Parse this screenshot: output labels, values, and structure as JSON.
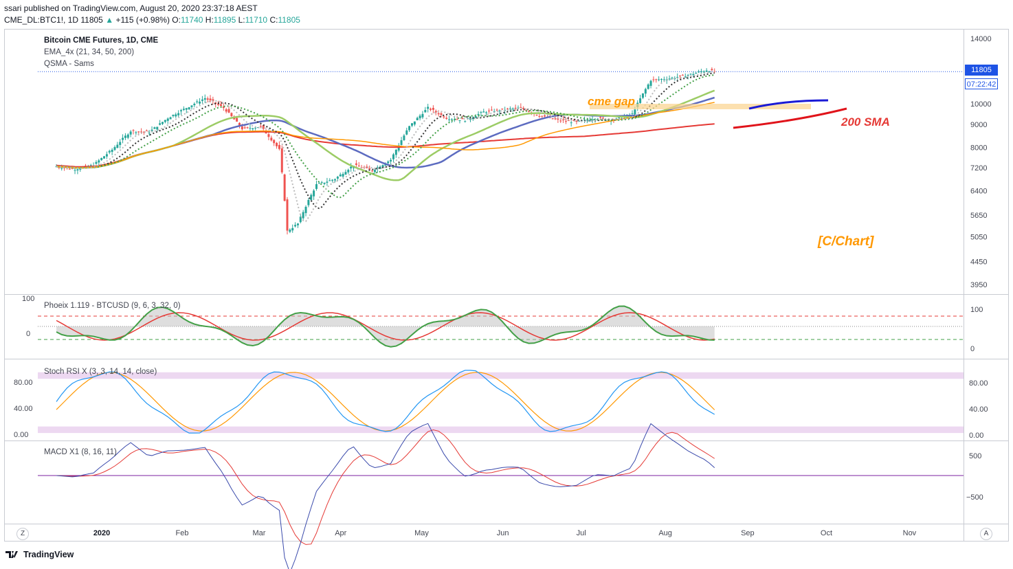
{
  "header": {
    "published": "ssari published on TradingView.com, August 20, 2020 23:37:18 AEST",
    "symbol": "CME_DL:BTC1!, 1D",
    "last": "11805",
    "change": "+115 (+0.98%)",
    "o_label": "O:",
    "o": "11740",
    "h_label": "H:",
    "h": "11895",
    "l_label": "L:",
    "l": "11710",
    "c_label": "C:",
    "c": "11805"
  },
  "pane_labels": {
    "title": "Bitcoin CME Futures, 1D, CME",
    "ema": "EMA_4x (21, 34, 50, 200)",
    "qsma": "QSMA - Sams",
    "phoeix": "Phoeix 1.119 - BTCUSD (9, 6, 3, 32, 0)",
    "stoch": "Stoch RSI X (3, 3, 14, 14, close)",
    "macd": "MACD X1 (8, 16, 11)"
  },
  "price_box": {
    "price": "11805",
    "countdown": "07:22:42"
  },
  "annotations": {
    "cme_gap": "cme gap",
    "sma_label": "200 SMA",
    "watermark": "[C/Chart]"
  },
  "price_axis": [
    "14000",
    "11805",
    "10000",
    "9000",
    "8000",
    "7200",
    "6400",
    "5650",
    "5050",
    "4450",
    "3950"
  ],
  "phoeix_axis": [
    "100",
    "0"
  ],
  "phoeix_left_axis": [
    "100",
    "0"
  ],
  "stoch_axis": [
    "80.00",
    "40.00",
    "0.00"
  ],
  "stoch_left_axis": [
    "80.00",
    "40.00",
    "0.00"
  ],
  "macd_axis": [
    "500",
    "−500"
  ],
  "time_axis": [
    "2020",
    "Feb",
    "Mar",
    "Apr",
    "May",
    "Jun",
    "Jul",
    "Aug",
    "Sep",
    "Oct",
    "Nov"
  ],
  "corner_left": "Z",
  "corner_right": "A",
  "footer": "TradingView",
  "colors": {
    "up": "#26a69a",
    "down": "#ef5350",
    "ema200": "#e53935",
    "ema50": "#5c6bc0",
    "qsma": "#9ccc65",
    "orange": "#ff9800"
  },
  "chart_data": [
    {
      "type": "line",
      "title": "Bitcoin CME Futures, 1D, CME",
      "note_series": "approximate daily closes",
      "x": [
        "2019-12-16",
        "2019-12-23",
        "2019-12-30",
        "2020-01-06",
        "2020-01-13",
        "2020-01-20",
        "2020-01-27",
        "2020-02-03",
        "2020-02-10",
        "2020-02-17",
        "2020-02-24",
        "2020-03-02",
        "2020-03-09",
        "2020-03-12",
        "2020-03-16",
        "2020-03-23",
        "2020-03-30",
        "2020-04-06",
        "2020-04-13",
        "2020-04-20",
        "2020-04-27",
        "2020-05-04",
        "2020-05-11",
        "2020-05-18",
        "2020-05-25",
        "2020-06-01",
        "2020-06-08",
        "2020-06-15",
        "2020-06-22",
        "2020-06-29",
        "2020-07-06",
        "2020-07-13",
        "2020-07-20",
        "2020-07-27",
        "2020-08-03",
        "2020-08-10",
        "2020-08-17",
        "2020-08-20"
      ],
      "series": [
        {
          "values": [
            7250,
            7150,
            7300,
            7900,
            8700,
            8650,
            9300,
            9800,
            10300,
            9800,
            8800,
            8900,
            7900,
            5200,
            5400,
            6600,
            6800,
            7300,
            7100,
            7500,
            8900,
            9800,
            9300,
            9200,
            9600,
            9700,
            9800,
            9400,
            9200,
            9100,
            9300,
            9200,
            9500,
            11300,
            11400,
            11600,
            11900,
            11805
          ]
        }
      ],
      "ylim": [
        3800,
        14400
      ]
    },
    {
      "type": "line",
      "title": "Phoeix 1.119 - BTCUSD (9, 6, 3, 32, 0)",
      "note_series": "approximate oscillator",
      "ylim": [
        -30,
        110
      ]
    },
    {
      "type": "line",
      "title": "Stoch RSI X (3, 3, 14, 14, close)",
      "ylim": [
        -5,
        105
      ]
    },
    {
      "type": "line",
      "title": "MACD X1 (8, 16, 11)",
      "ylim": [
        -800,
        700
      ]
    }
  ]
}
